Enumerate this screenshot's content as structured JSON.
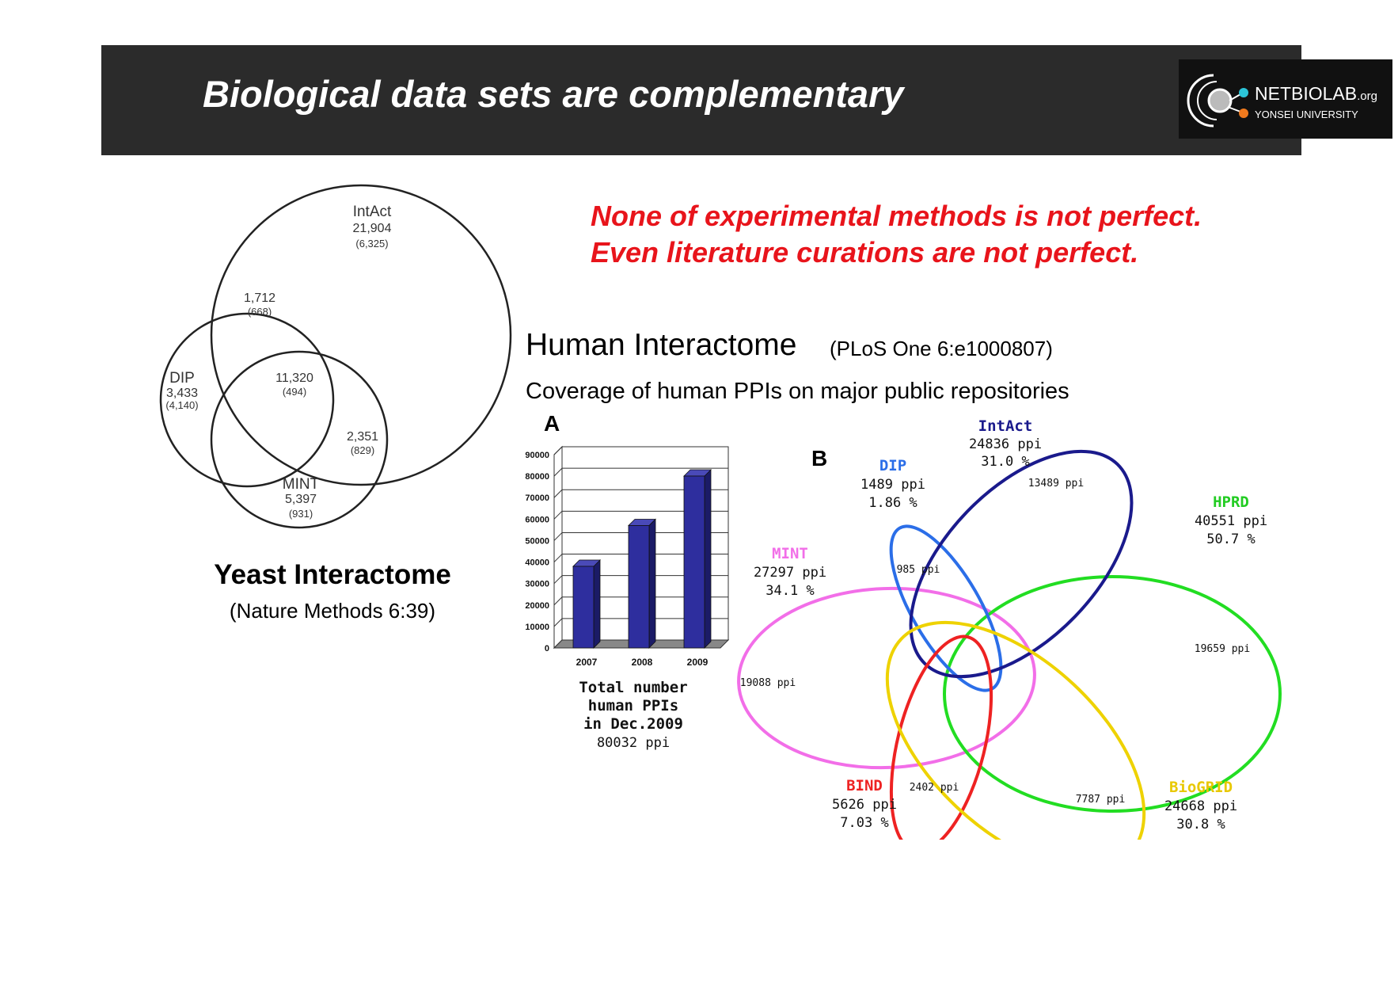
{
  "header": {
    "title": "Biological data sets are complementary",
    "logo": {
      "main": "NETBIOLAB",
      "suffix": ".org",
      "sub": "YONSEI UNIVERSITY"
    }
  },
  "notes": {
    "line1": "None of experimental methods is not perfect.",
    "line2": "Even literature curations are not perfect."
  },
  "yeast": {
    "title": "Yeast Interactome",
    "citation": "(Nature Methods 6:39)",
    "intact": {
      "name": "IntAct",
      "count": "21,904",
      "sub": "(6,325)"
    },
    "dip": {
      "name": "DIP",
      "count": "3,433",
      "sub": "(4,140)"
    },
    "mint": {
      "name": "MINT",
      "count": "5,397",
      "sub": "(931)"
    },
    "dip_intact": {
      "count": "1,712",
      "sub": "(668)"
    },
    "all_three": {
      "count": "11,320",
      "sub": "(494)"
    },
    "intact_mint": {
      "count": "2,351",
      "sub": "(829)"
    }
  },
  "human": {
    "title": "Human Interactome",
    "citation": "(PLoS One 6:e1000807)",
    "coverage_title": "Coverage of human PPIs on major public repositories",
    "panel_a_label": "A",
    "panel_b_label": "B",
    "total_caption": [
      "Total number",
      "human PPIs",
      "in Dec.2009"
    ],
    "total_value": "80032 ppi",
    "databases": [
      {
        "name": "IntAct",
        "ppi": "24836 ppi",
        "pct": "31.0 %",
        "color": "#1a1a8c"
      },
      {
        "name": "DIP",
        "ppi": "1489 ppi",
        "pct": "1.86 %",
        "color": "#2b6ee8"
      },
      {
        "name": "HPRD",
        "ppi": "40551 ppi",
        "pct": "50.7 %",
        "color": "#22dd22"
      },
      {
        "name": "MINT",
        "ppi": "27297 ppi",
        "pct": "34.1 %",
        "color": "#f26ee8"
      },
      {
        "name": "BIND",
        "ppi": "5626 ppi",
        "pct": "7.03 %",
        "color": "#ee2222"
      },
      {
        "name": "BioGRID",
        "ppi": "24668 ppi",
        "pct": "30.8 %",
        "color": "#eed200"
      }
    ],
    "unique": {
      "intact": "13489 ppi",
      "dip": "985 ppi",
      "hprd": "19659 ppi",
      "mint": "19088 ppi",
      "bind": "2402 ppi",
      "biogrid": "7787 ppi"
    }
  },
  "chart_data": {
    "type": "bar",
    "categories": [
      "2007",
      "2008",
      "2009"
    ],
    "values": [
      38000,
      57000,
      80032
    ],
    "ylim": [
      0,
      90000
    ],
    "yticks": [
      "0",
      "10000",
      "20000",
      "30000",
      "40000",
      "50000",
      "60000",
      "70000",
      "80000",
      "90000"
    ],
    "bar_color": "#2e2e9e",
    "grid": true
  }
}
